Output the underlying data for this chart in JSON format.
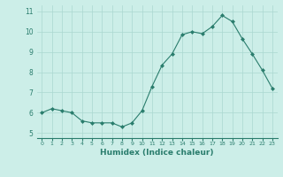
{
  "x": [
    0,
    1,
    2,
    3,
    4,
    5,
    6,
    7,
    8,
    9,
    10,
    11,
    12,
    13,
    14,
    15,
    16,
    17,
    18,
    19,
    20,
    21,
    22,
    23
  ],
  "y": [
    6.0,
    6.2,
    6.1,
    6.0,
    5.6,
    5.5,
    5.5,
    5.5,
    5.3,
    5.5,
    6.1,
    7.3,
    8.35,
    8.9,
    9.85,
    10.0,
    9.9,
    10.25,
    10.8,
    10.5,
    9.65,
    8.9,
    8.1,
    7.2
  ],
  "line_color": "#2a7d6d",
  "marker": "D",
  "marker_size": 2.0,
  "bg_color": "#cceee8",
  "grid_color": "#aad8d0",
  "tick_color": "#2a7d6d",
  "xlabel": "Humidex (Indice chaleur)",
  "xlabel_fontsize": 6.5,
  "xlim": [
    -0.5,
    23.5
  ],
  "ylim": [
    4.75,
    11.3
  ],
  "yticks": [
    5,
    6,
    7,
    8,
    9,
    10,
    11
  ],
  "xticks": [
    0,
    1,
    2,
    3,
    4,
    5,
    6,
    7,
    8,
    9,
    10,
    11,
    12,
    13,
    14,
    15,
    16,
    17,
    18,
    19,
    20,
    21,
    22,
    23
  ]
}
